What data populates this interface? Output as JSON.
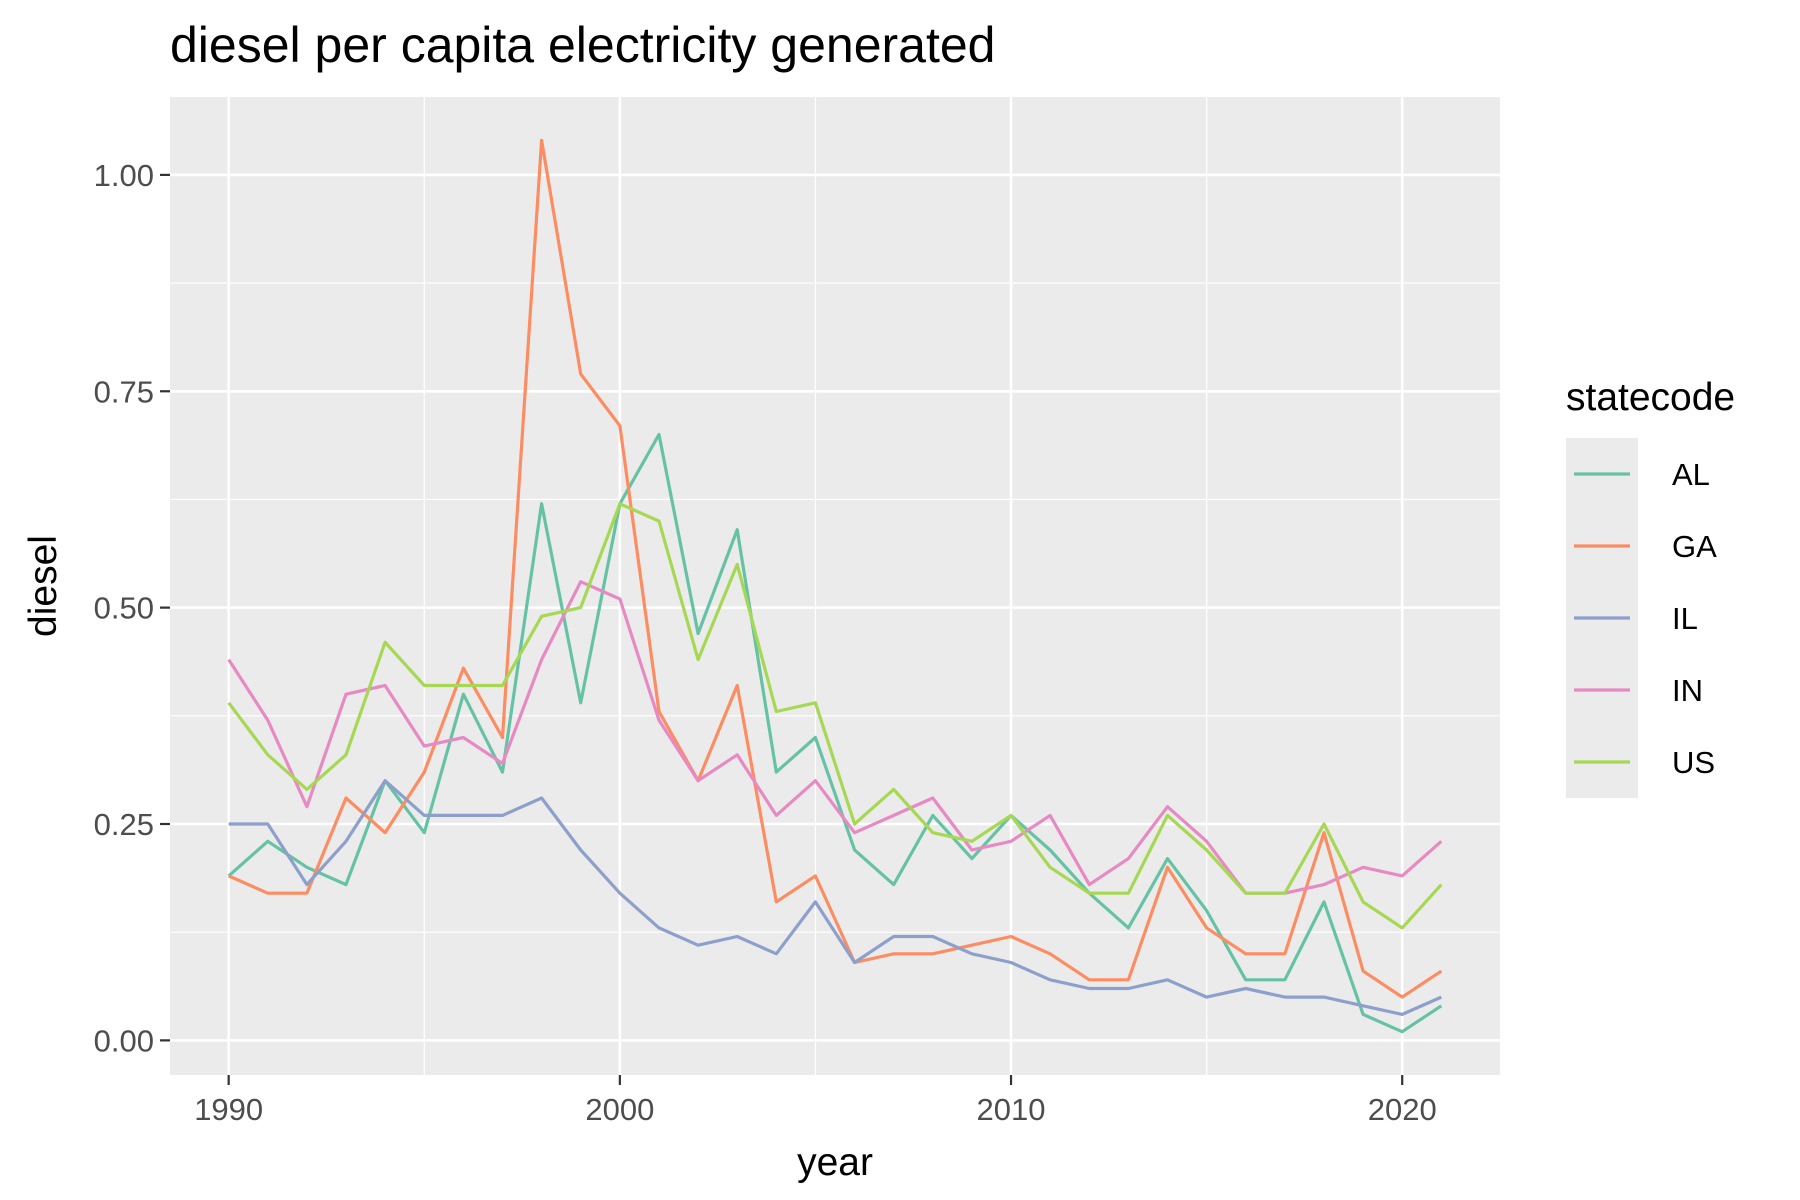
{
  "chart_data": {
    "type": "line",
    "title": "diesel per capita electricity generated",
    "xlabel": "year",
    "ylabel": "diesel",
    "xlim": [
      1988.5,
      2022.5
    ],
    "ylim": [
      -0.04,
      1.09
    ],
    "x_ticks": [
      1990,
      2000,
      2010,
      2020
    ],
    "x_tick_labels": [
      "1990",
      "2000",
      "2010",
      "2020"
    ],
    "y_ticks": [
      0,
      0.25,
      0.5,
      0.75,
      1.0
    ],
    "y_tick_labels": [
      "0.00",
      "0.25",
      "0.50",
      "0.75",
      "1.00"
    ],
    "grid": true,
    "legend": {
      "title": "statecode",
      "placement": "right"
    },
    "x": [
      1990,
      1991,
      1992,
      1993,
      1994,
      1995,
      1996,
      1997,
      1998,
      1999,
      2000,
      2001,
      2002,
      2003,
      2004,
      2005,
      2006,
      2007,
      2008,
      2009,
      2010,
      2011,
      2012,
      2013,
      2014,
      2015,
      2016,
      2017,
      2018,
      2019,
      2020,
      2021
    ],
    "series": [
      {
        "name": "AL",
        "color": "#66c2a5",
        "values": [
          0.19,
          0.23,
          0.2,
          0.18,
          0.3,
          0.24,
          0.4,
          0.31,
          0.62,
          0.39,
          0.62,
          0.7,
          0.47,
          0.59,
          0.31,
          0.35,
          0.22,
          0.18,
          0.26,
          0.21,
          0.26,
          0.22,
          0.17,
          0.13,
          0.21,
          0.15,
          0.07,
          0.07,
          0.16,
          0.03,
          0.01,
          0.04
        ]
      },
      {
        "name": "GA",
        "color": "#fc8d62",
        "values": [
          0.19,
          0.17,
          0.17,
          0.28,
          0.24,
          0.31,
          0.43,
          0.35,
          1.04,
          0.77,
          0.71,
          0.38,
          0.3,
          0.41,
          0.16,
          0.19,
          0.09,
          0.1,
          0.1,
          0.11,
          0.12,
          0.1,
          0.07,
          0.07,
          0.2,
          0.13,
          0.1,
          0.1,
          0.24,
          0.08,
          0.05,
          0.08
        ]
      },
      {
        "name": "IL",
        "color": "#8da0cb",
        "values": [
          0.25,
          0.25,
          0.18,
          0.23,
          0.3,
          0.26,
          0.26,
          0.26,
          0.28,
          0.22,
          0.17,
          0.13,
          0.11,
          0.12,
          0.1,
          0.16,
          0.09,
          0.12,
          0.12,
          0.1,
          0.09,
          0.07,
          0.06,
          0.06,
          0.07,
          0.05,
          0.06,
          0.05,
          0.05,
          0.04,
          0.03,
          0.05
        ]
      },
      {
        "name": "IN",
        "color": "#e78ac3",
        "values": [
          0.44,
          0.37,
          0.27,
          0.4,
          0.41,
          0.34,
          0.35,
          0.32,
          0.44,
          0.53,
          0.51,
          0.37,
          0.3,
          0.33,
          0.26,
          0.3,
          0.24,
          0.26,
          0.28,
          0.22,
          0.23,
          0.26,
          0.18,
          0.21,
          0.27,
          0.23,
          0.17,
          0.17,
          0.18,
          0.2,
          0.19,
          0.23
        ]
      },
      {
        "name": "US",
        "color": "#a6d854",
        "values": [
          0.39,
          0.33,
          0.29,
          0.33,
          0.46,
          0.41,
          0.41,
          0.41,
          0.49,
          0.5,
          0.62,
          0.6,
          0.44,
          0.55,
          0.38,
          0.39,
          0.25,
          0.29,
          0.24,
          0.23,
          0.26,
          0.2,
          0.17,
          0.17,
          0.26,
          0.22,
          0.17,
          0.17,
          0.25,
          0.16,
          0.13,
          0.18
        ]
      }
    ]
  }
}
